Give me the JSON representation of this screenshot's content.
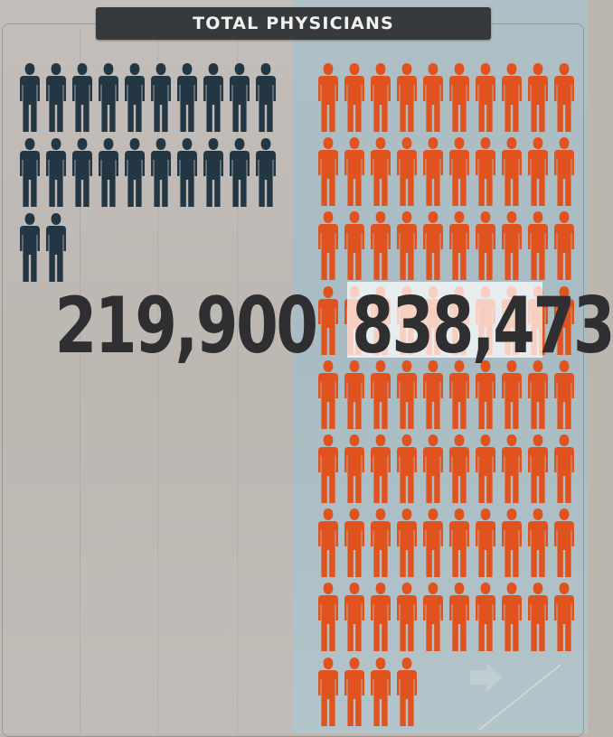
{
  "title": "TOTAL PHYSICIANS",
  "colors": {
    "left_figures": "#233643",
    "right_figures": "#e0531f",
    "title_bar": "#373a3c"
  },
  "groups": [
    {
      "name": "",
      "value_label": "219,900",
      "value": 219900,
      "icon_count": 22,
      "color": "#233643"
    },
    {
      "name": "",
      "value_label": "838,473",
      "value": 838473,
      "icon_count": 84,
      "color": "#e0531f"
    }
  ],
  "icon": "person-silhouette-icon"
}
